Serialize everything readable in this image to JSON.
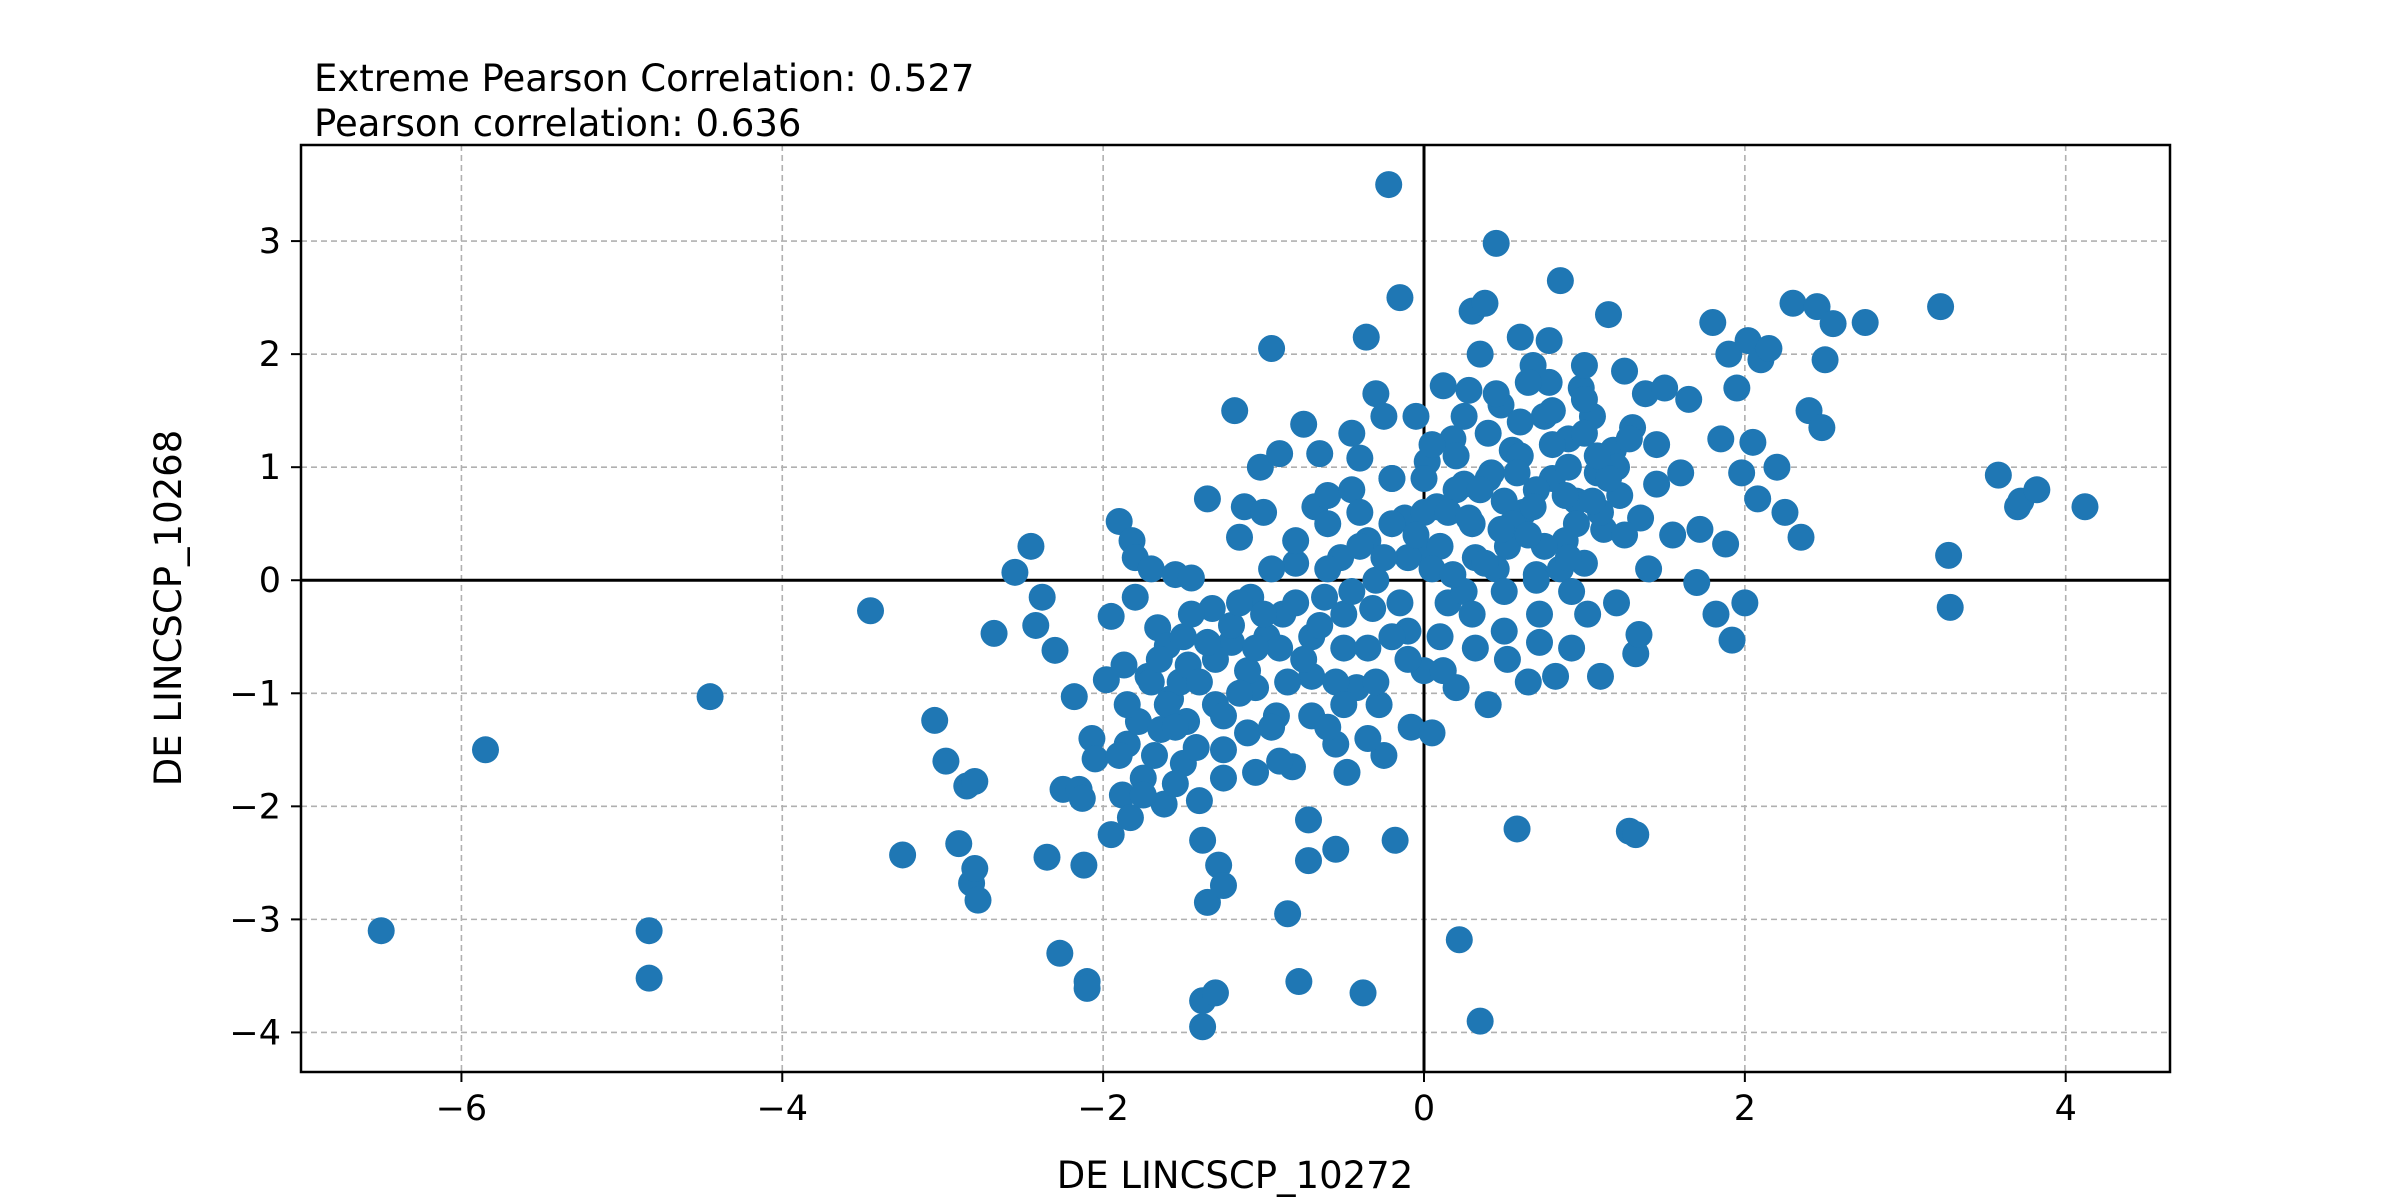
{
  "chart_data": {
    "type": "scatter",
    "title_lines": [
      "Extreme Pearson Correlation: 0.527",
      "Pearson correlation: 0.636"
    ],
    "xlabel": "DE LINCSCP_10272",
    "ylabel": "DE LINCSCP_10268",
    "xlim": [
      -7.0,
      4.65
    ],
    "ylim": [
      -4.35,
      3.85
    ],
    "x_ticks": [
      -6,
      -4,
      -2,
      0,
      2,
      4
    ],
    "x_tick_labels": [
      "−6",
      "−4",
      "−2",
      "0",
      "2",
      "4"
    ],
    "y_ticks": [
      -4,
      -3,
      -2,
      -1,
      0,
      1,
      2,
      3
    ],
    "y_tick_labels": [
      "−4",
      "−3",
      "−2",
      "−1",
      "0",
      "1",
      "2",
      "3"
    ],
    "grid": true,
    "zero_lines": true,
    "point_color": "#1f77b4",
    "points": [
      [
        -6.5,
        -3.1
      ],
      [
        -5.85,
        -1.5
      ],
      [
        -4.83,
        -3.1
      ],
      [
        -4.83,
        -3.52
      ],
      [
        -4.45,
        -1.03
      ],
      [
        -3.45,
        -0.27
      ],
      [
        -3.25,
        -2.43
      ],
      [
        -3.05,
        -1.24
      ],
      [
        -2.98,
        -1.6
      ],
      [
        -2.9,
        -2.33
      ],
      [
        -2.85,
        -1.82
      ],
      [
        -2.8,
        -1.78
      ],
      [
        -2.82,
        -2.68
      ],
      [
        -2.8,
        -2.55
      ],
      [
        -2.78,
        -2.83
      ],
      [
        -2.68,
        -0.47
      ],
      [
        -2.55,
        0.07
      ],
      [
        -2.45,
        0.3
      ],
      [
        -2.42,
        -0.4
      ],
      [
        -2.38,
        -0.15
      ],
      [
        -2.35,
        -2.45
      ],
      [
        -2.3,
        -0.62
      ],
      [
        -2.27,
        -3.3
      ],
      [
        -2.25,
        -1.85
      ],
      [
        -2.18,
        -1.03
      ],
      [
        -2.15,
        -1.85
      ],
      [
        -2.13,
        -1.93
      ],
      [
        -2.12,
        -2.52
      ],
      [
        -2.1,
        -3.55
      ],
      [
        -2.1,
        -3.61
      ],
      [
        -2.07,
        -1.4
      ],
      [
        -2.05,
        -1.58
      ],
      [
        -1.98,
        -0.88
      ],
      [
        -1.95,
        -2.25
      ],
      [
        -1.95,
        -0.32
      ],
      [
        -1.9,
        0.52
      ],
      [
        -1.88,
        -1.9
      ],
      [
        -1.87,
        -0.75
      ],
      [
        -1.85,
        -1.45
      ],
      [
        -1.83,
        -2.1
      ],
      [
        -1.82,
        0.35
      ],
      [
        -1.8,
        0.2
      ],
      [
        -1.8,
        -0.15
      ],
      [
        -1.78,
        -1.25
      ],
      [
        -1.75,
        -1.75
      ],
      [
        -1.72,
        -0.85
      ],
      [
        -1.7,
        0.1
      ],
      [
        -1.68,
        -1.55
      ],
      [
        -1.66,
        -0.42
      ],
      [
        -1.64,
        -1.32
      ],
      [
        -1.62,
        -1.98
      ],
      [
        -1.6,
        -0.58
      ],
      [
        -1.58,
        -1.05
      ],
      [
        -1.55,
        0.05
      ],
      [
        -1.52,
        -0.9
      ],
      [
        -1.5,
        -1.62
      ],
      [
        -1.48,
        -1.25
      ],
      [
        -1.47,
        -0.75
      ],
      [
        -1.45,
        0.02
      ],
      [
        -1.42,
        -1.48
      ],
      [
        -1.4,
        -1.95
      ],
      [
        -1.38,
        -2.3
      ],
      [
        -1.38,
        -3.72
      ],
      [
        -1.38,
        -3.95
      ],
      [
        -1.35,
        -2.85
      ],
      [
        -1.35,
        0.72
      ],
      [
        -1.32,
        -0.25
      ],
      [
        -1.3,
        -1.1
      ],
      [
        -1.3,
        -3.65
      ],
      [
        -1.28,
        -2.52
      ],
      [
        -1.25,
        -2.7
      ],
      [
        -1.25,
        -1.75
      ],
      [
        -1.2,
        -0.55
      ],
      [
        -1.18,
        1.5
      ],
      [
        -1.15,
        0.38
      ],
      [
        -1.12,
        0.65
      ],
      [
        -1.1,
        -1.35
      ],
      [
        -1.08,
        -0.15
      ],
      [
        -1.05,
        -0.95
      ],
      [
        -1.02,
        1.0
      ],
      [
        -1.0,
        0.6
      ],
      [
        -0.98,
        -0.5
      ],
      [
        -0.95,
        2.05
      ],
      [
        -0.92,
        -1.2
      ],
      [
        -0.9,
        1.12
      ],
      [
        -0.88,
        -0.3
      ],
      [
        -0.85,
        -2.95
      ],
      [
        -0.82,
        -1.65
      ],
      [
        -0.8,
        0.15
      ],
      [
        -0.78,
        -3.55
      ],
      [
        -0.75,
        1.38
      ],
      [
        -0.72,
        -2.48
      ],
      [
        -0.72,
        -2.12
      ],
      [
        -0.7,
        -0.85
      ],
      [
        -0.68,
        0.65
      ],
      [
        -0.65,
        1.12
      ],
      [
        -0.62,
        -0.15
      ],
      [
        -0.6,
        0.75
      ],
      [
        -0.55,
        -1.45
      ],
      [
        -0.55,
        -2.38
      ],
      [
        -0.52,
        0.2
      ],
      [
        -0.5,
        -0.6
      ],
      [
        -0.48,
        -1.7
      ],
      [
        -0.45,
        0.8
      ],
      [
        -0.42,
        -0.95
      ],
      [
        -0.4,
        1.08
      ],
      [
        -0.38,
        -3.65
      ],
      [
        -0.36,
        2.15
      ],
      [
        -0.35,
        0.35
      ],
      [
        -0.32,
        -0.25
      ],
      [
        -0.3,
        1.65
      ],
      [
        -0.28,
        -1.1
      ],
      [
        -0.25,
        -1.55
      ],
      [
        -0.22,
        3.5
      ],
      [
        -0.2,
        0.9
      ],
      [
        -0.18,
        -2.3
      ],
      [
        -0.15,
        2.5
      ],
      [
        -0.12,
        0.55
      ],
      [
        -0.1,
        -0.45
      ],
      [
        -0.08,
        -1.3
      ],
      [
        -0.05,
        1.45
      ],
      [
        -0.02,
        0.25
      ],
      [
        0.0,
        -0.8
      ],
      [
        0.02,
        1.05
      ],
      [
        0.05,
        -1.35
      ],
      [
        0.08,
        0.65
      ],
      [
        0.12,
        1.72
      ],
      [
        0.15,
        -0.2
      ],
      [
        0.18,
        1.25
      ],
      [
        0.2,
        -0.95
      ],
      [
        0.22,
        -3.18
      ],
      [
        0.25,
        0.85
      ],
      [
        0.28,
        1.68
      ],
      [
        0.3,
        2.38
      ],
      [
        0.32,
        0.2
      ],
      [
        0.35,
        -3.9
      ],
      [
        0.35,
        2.0
      ],
      [
        0.38,
        2.45
      ],
      [
        0.4,
        -1.1
      ],
      [
        0.42,
        0.95
      ],
      [
        0.45,
        2.98
      ],
      [
        0.48,
        1.55
      ],
      [
        0.5,
        -0.45
      ],
      [
        0.52,
        0.3
      ],
      [
        0.55,
        1.15
      ],
      [
        0.58,
        -2.2
      ],
      [
        0.6,
        2.15
      ],
      [
        0.62,
        0.6
      ],
      [
        0.65,
        -0.9
      ],
      [
        0.68,
        1.9
      ],
      [
        0.7,
        0.05
      ],
      [
        0.72,
        -0.55
      ],
      [
        0.75,
        1.45
      ],
      [
        0.78,
        2.12
      ],
      [
        0.8,
        0.9
      ],
      [
        0.82,
        -0.85
      ],
      [
        0.85,
        2.65
      ],
      [
        0.88,
        0.35
      ],
      [
        0.9,
        1.25
      ],
      [
        0.92,
        -0.6
      ],
      [
        0.95,
        0.7
      ],
      [
        0.98,
        1.7
      ],
      [
        1.0,
        0.15
      ],
      [
        1.02,
        -0.3
      ],
      [
        1.05,
        1.45
      ],
      [
        1.08,
        0.95
      ],
      [
        1.1,
        -0.85
      ],
      [
        1.12,
        0.45
      ],
      [
        1.15,
        2.35
      ],
      [
        1.18,
        1.15
      ],
      [
        1.2,
        -0.2
      ],
      [
        1.22,
        0.75
      ],
      [
        1.25,
        1.85
      ],
      [
        1.28,
        -2.22
      ],
      [
        1.3,
        1.35
      ],
      [
        1.32,
        -2.25
      ],
      [
        1.32,
        -0.65
      ],
      [
        1.34,
        -0.48
      ],
      [
        1.35,
        0.55
      ],
      [
        1.38,
        1.65
      ],
      [
        1.4,
        0.1
      ],
      [
        1.45,
        1.2
      ],
      [
        1.5,
        1.7
      ],
      [
        1.55,
        0.4
      ],
      [
        1.6,
        0.95
      ],
      [
        1.65,
        1.6
      ],
      [
        1.7,
        -0.02
      ],
      [
        1.72,
        0.45
      ],
      [
        1.8,
        2.28
      ],
      [
        1.82,
        -0.3
      ],
      [
        1.85,
        1.25
      ],
      [
        1.88,
        0.32
      ],
      [
        1.9,
        2.0
      ],
      [
        1.92,
        -0.53
      ],
      [
        1.95,
        1.7
      ],
      [
        1.98,
        0.95
      ],
      [
        2.0,
        -0.2
      ],
      [
        2.02,
        2.12
      ],
      [
        2.05,
        1.22
      ],
      [
        2.08,
        0.72
      ],
      [
        2.1,
        1.95
      ],
      [
        2.15,
        2.05
      ],
      [
        2.2,
        1.0
      ],
      [
        2.25,
        0.6
      ],
      [
        2.3,
        2.45
      ],
      [
        2.35,
        0.38
      ],
      [
        2.4,
        1.5
      ],
      [
        2.45,
        2.42
      ],
      [
        2.48,
        1.35
      ],
      [
        2.5,
        1.95
      ],
      [
        2.55,
        2.27
      ],
      [
        2.75,
        2.28
      ],
      [
        3.22,
        2.42
      ],
      [
        3.27,
        0.22
      ],
      [
        3.28,
        -0.24
      ],
      [
        3.58,
        0.93
      ],
      [
        3.7,
        0.65
      ],
      [
        3.72,
        0.7
      ],
      [
        3.82,
        0.8
      ],
      [
        4.12,
        0.65
      ],
      [
        -1.5,
        -0.5
      ],
      [
        -1.4,
        -0.9
      ],
      [
        -1.3,
        -0.7
      ],
      [
        -1.2,
        -0.4
      ],
      [
        -1.1,
        -0.8
      ],
      [
        -1.0,
        -0.3
      ],
      [
        -0.9,
        -0.6
      ],
      [
        -0.8,
        -0.2
      ],
      [
        -0.7,
        -0.5
      ],
      [
        -0.6,
        0.1
      ],
      [
        -0.5,
        -0.3
      ],
      [
        -0.4,
        0.3
      ],
      [
        -0.3,
        0.0
      ],
      [
        -0.2,
        0.5
      ],
      [
        -0.1,
        0.2
      ],
      [
        0.0,
        0.6
      ],
      [
        0.1,
        0.3
      ],
      [
        0.2,
        0.8
      ],
      [
        0.3,
        0.5
      ],
      [
        0.4,
        0.9
      ],
      [
        0.5,
        0.7
      ],
      [
        0.6,
        1.1
      ],
      [
        0.7,
        0.8
      ],
      [
        0.8,
        1.2
      ],
      [
        0.9,
        1.0
      ],
      [
        1.0,
        1.3
      ],
      [
        1.1,
        0.6
      ],
      [
        1.2,
        1.0
      ],
      [
        -1.25,
        -1.2
      ],
      [
        -1.05,
        -0.6
      ],
      [
        -0.85,
        -0.9
      ],
      [
        -0.65,
        -0.4
      ],
      [
        -0.45,
        -0.1
      ],
      [
        -0.25,
        0.2
      ],
      [
        -0.05,
        0.4
      ],
      [
        0.15,
        0.6
      ],
      [
        0.35,
        0.8
      ],
      [
        0.55,
        0.5
      ],
      [
        0.75,
        0.3
      ],
      [
        0.95,
        0.5
      ],
      [
        1.15,
        0.9
      ],
      [
        -1.6,
        -1.1
      ],
      [
        -1.45,
        -0.3
      ],
      [
        -1.15,
        -1.0
      ],
      [
        -0.95,
        -1.3
      ],
      [
        -0.75,
        -0.7
      ],
      [
        -0.55,
        -0.9
      ],
      [
        -0.35,
        -0.6
      ],
      [
        -0.15,
        -0.2
      ],
      [
        0.05,
        0.1
      ],
      [
        0.25,
        -0.1
      ],
      [
        0.45,
        0.1
      ],
      [
        0.65,
        0.4
      ],
      [
        0.85,
        0.1
      ],
      [
        1.05,
        0.7
      ],
      [
        1.25,
        0.4
      ],
      [
        -0.6,
        0.5
      ],
      [
        -0.4,
        0.6
      ],
      [
        -0.2,
        0.9
      ],
      [
        0.0,
        0.9
      ],
      [
        0.2,
        1.1
      ],
      [
        0.4,
        1.3
      ],
      [
        0.6,
        1.4
      ],
      [
        0.8,
        1.5
      ],
      [
        1.0,
        1.6
      ],
      [
        -0.9,
        -1.6
      ],
      [
        -0.7,
        -1.2
      ],
      [
        -0.5,
        -1.1
      ],
      [
        -0.3,
        -0.9
      ],
      [
        -0.1,
        -0.7
      ],
      [
        0.1,
        -0.5
      ],
      [
        0.3,
        -0.3
      ],
      [
        0.5,
        -0.1
      ],
      [
        0.7,
        0.0
      ],
      [
        0.9,
        0.2
      ],
      [
        -1.7,
        -0.9
      ],
      [
        -1.55,
        -1.3
      ],
      [
        -1.35,
        -0.55
      ],
      [
        -1.15,
        -0.2
      ],
      [
        -0.95,
        0.1
      ],
      [
        -0.8,
        0.35
      ],
      [
        0.28,
        0.55
      ],
      [
        0.48,
        0.45
      ],
      [
        0.68,
        0.65
      ],
      [
        0.88,
        0.75
      ],
      [
        1.08,
        1.1
      ],
      [
        1.28,
        1.25
      ],
      [
        1.45,
        0.85
      ],
      [
        -0.2,
        -0.5
      ],
      [
        0.12,
        -0.8
      ],
      [
        0.32,
        -0.6
      ],
      [
        0.52,
        -0.7
      ],
      [
        0.72,
        -0.3
      ],
      [
        0.92,
        -0.1
      ],
      [
        -1.85,
        -1.1
      ],
      [
        -1.65,
        -0.7
      ],
      [
        -1.9,
        -1.55
      ],
      [
        -1.75,
        -1.9
      ],
      [
        -1.55,
        -1.8
      ],
      [
        -1.25,
        -1.5
      ],
      [
        -1.05,
        -1.7
      ],
      [
        -0.6,
        -1.3
      ],
      [
        -0.35,
        -1.4
      ],
      [
        0.18,
        0.05
      ],
      [
        0.38,
        0.15
      ],
      [
        0.58,
        0.95
      ],
      [
        0.78,
        1.75
      ],
      [
        1.0,
        1.9
      ],
      [
        -0.45,
        1.3
      ],
      [
        -0.25,
        1.45
      ],
      [
        0.05,
        1.2
      ],
      [
        0.25,
        1.45
      ],
      [
        0.45,
        1.65
      ],
      [
        0.65,
        1.75
      ]
    ]
  }
}
